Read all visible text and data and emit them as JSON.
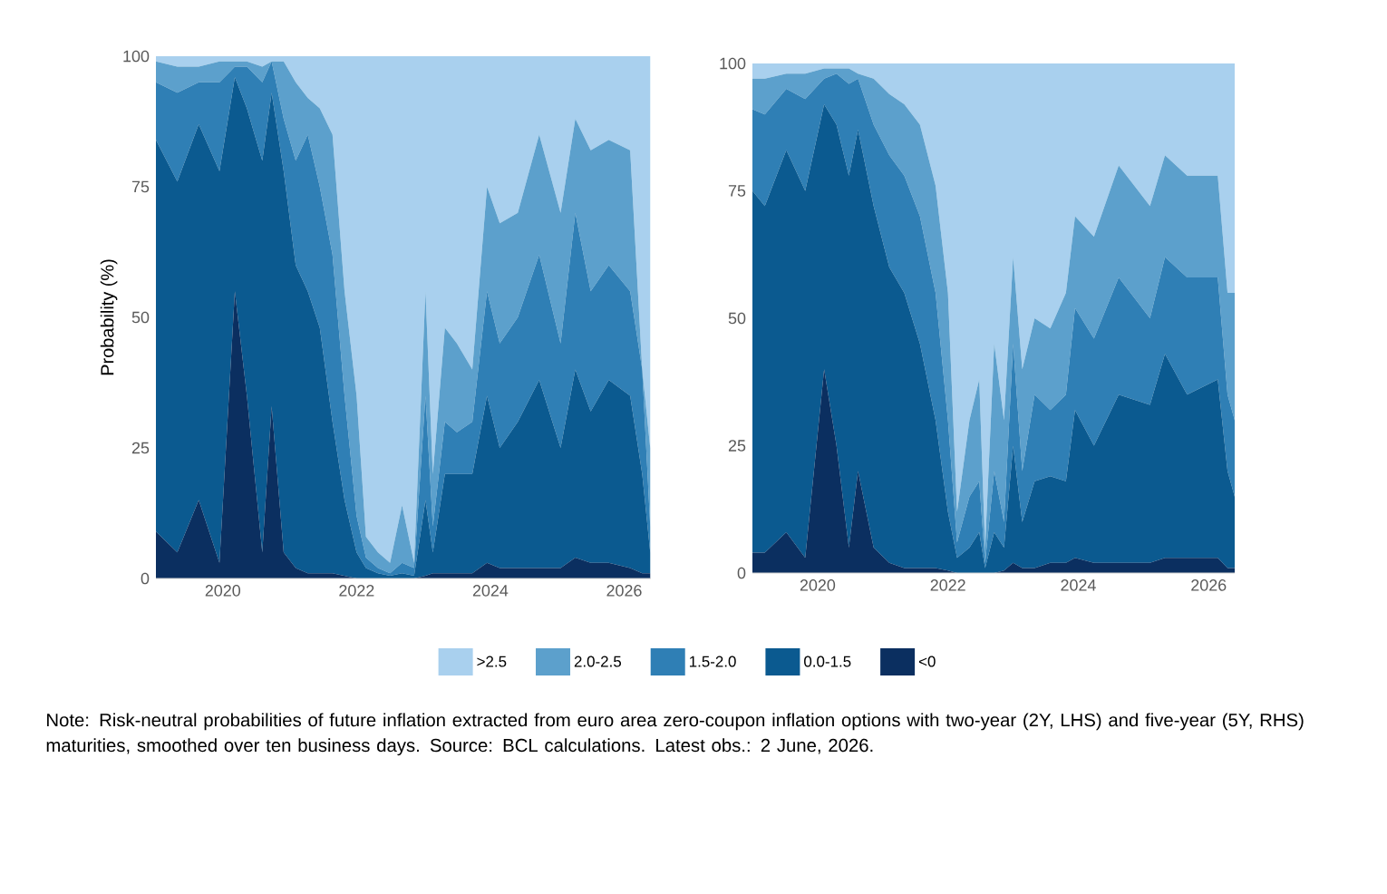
{
  "chart_data": [
    {
      "type": "area",
      "stacked": true,
      "ylabel": "Probability (%)",
      "legend": "bottom",
      "x": [
        2019,
        2019.32,
        2019.64,
        2019.95,
        2020.18,
        2020.36,
        2020.59,
        2020.73,
        2020.91,
        2021.09,
        2021.27,
        2021.45,
        2021.64,
        2021.82,
        2022,
        2022.14,
        2022.32,
        2022.5,
        2022.68,
        2022.86,
        2023.03,
        2023.14,
        2023.32,
        2023.5,
        2023.73,
        2023.95,
        2024.14,
        2024.41,
        2024.73,
        2025.05,
        2025.27,
        2025.5,
        2025.77,
        2026.09,
        2026.27,
        2026.39
      ],
      "xlim": [
        2019,
        2026.4
      ],
      "xticks": [
        2020,
        2022,
        2024,
        2026
      ],
      "ylim": [
        0,
        100
      ],
      "yticks": [
        0,
        25,
        50,
        75,
        100
      ],
      "series": [
        {
          "name": "<0",
          "color": "#0b2f60",
          "values": [
            9,
            5,
            15,
            3,
            55,
            35,
            5,
            33,
            5,
            2,
            1,
            1,
            1,
            0.5,
            0,
            0,
            0,
            0,
            0,
            0,
            0.5,
            1,
            1,
            1,
            1,
            3,
            2,
            2,
            2,
            2,
            4,
            3,
            3,
            2,
            1,
            1
          ]
        },
        {
          "name": "0.0-1.5",
          "color": "#0b5a90",
          "values": [
            75,
            71,
            72,
            75,
            41,
            55,
            75,
            60,
            73,
            58,
            54,
            47,
            29,
            14.5,
            5,
            2,
            1,
            0.5,
            1,
            0.5,
            14.5,
            4,
            19,
            19,
            19,
            32,
            23,
            28,
            36,
            23,
            36,
            29,
            35,
            33,
            19,
            4
          ]
        },
        {
          "name": "1.5-2.0",
          "color": "#2f7fb5",
          "values": [
            11,
            17,
            8,
            17,
            2,
            8,
            15,
            6,
            10,
            20,
            30,
            27,
            32,
            20,
            7,
            2,
            1,
            0.5,
            2,
            1.5,
            20,
            5,
            10,
            8,
            10,
            20,
            20,
            20,
            24,
            20,
            30,
            23,
            22,
            20,
            20,
            5
          ]
        },
        {
          "name": "2.0-2.5",
          "color": "#5ca0cc",
          "values": [
            4,
            5,
            3,
            4,
            1,
            1,
            3,
            0,
            11,
            15,
            7,
            15,
            23,
            20,
            23,
            4,
            3,
            2,
            11,
            1,
            20,
            10,
            18,
            17,
            10,
            20,
            23,
            20,
            23,
            25,
            18,
            27,
            24,
            27,
            0,
            15
          ]
        },
        {
          "name": ">2.5",
          "color": "#a9d0ee",
          "values": [
            1,
            2,
            2,
            1,
            1,
            1,
            2,
            1,
            1,
            5,
            8,
            10,
            15,
            45,
            65,
            92,
            95,
            97,
            86,
            97,
            45,
            80,
            52,
            55,
            60,
            25,
            32,
            30,
            15,
            30,
            12,
            18,
            16,
            18,
            60,
            75
          ]
        }
      ],
      "annotations": [
        "Note: Risk-neutral probabilities of future inflation extracted from euro area zero-coupon inflation options with two-year (2Y, LHS) and five-year (5Y, RHS) maturities, smoothed over ten business days. Source: BCL calculations. Latest obs.: 2 June, 2026."
      ]
    },
    {
      "type": "area",
      "stacked": true,
      "x": [
        2019,
        2019.19,
        2019.52,
        2019.81,
        2020.1,
        2020.29,
        2020.48,
        2020.62,
        2020.86,
        2021.1,
        2021.33,
        2021.57,
        2021.81,
        2022,
        2022.14,
        2022.33,
        2022.48,
        2022.57,
        2022.71,
        2022.86,
        2023,
        2023.14,
        2023.33,
        2023.57,
        2023.81,
        2023.95,
        2024.24,
        2024.62,
        2025.1,
        2025.33,
        2025.67,
        2026.14,
        2026.29,
        2026.4
      ],
      "xlim": [
        2019,
        2026.4
      ],
      "xticks": [
        2020,
        2022,
        2024,
        2026
      ],
      "ylim": [
        0,
        100
      ],
      "yticks": [
        0,
        25,
        50,
        75,
        100
      ],
      "series": [
        {
          "color": "#0b2f60",
          "values": [
            4,
            4,
            8,
            3,
            40,
            25,
            5,
            20,
            5,
            2,
            1,
            1,
            1,
            0.5,
            0,
            0,
            0,
            0,
            0,
            0.5,
            2,
            1,
            1,
            2,
            2,
            3,
            2,
            2,
            2,
            3,
            3,
            3,
            1,
            1
          ]
        },
        {
          "color": "#0b5a90",
          "values": [
            71,
            68,
            75,
            72,
            52,
            63,
            73,
            67,
            67,
            58,
            54,
            44,
            29,
            11.5,
            3,
            5,
            8,
            1,
            8,
            4.5,
            23,
            9,
            17,
            17,
            16,
            29,
            23,
            33,
            31,
            40,
            32,
            35,
            19,
            14
          ]
        },
        {
          "color": "#2f7fb5",
          "values": [
            16,
            18,
            12,
            18,
            5,
            10,
            18,
            10,
            16,
            22,
            23,
            25,
            25,
            18,
            3,
            10,
            10,
            1,
            12,
            5,
            20,
            10,
            17,
            13,
            17,
            20,
            21,
            23,
            17,
            19,
            23,
            20,
            15,
            15
          ]
        },
        {
          "color": "#5ca0cc",
          "values": [
            6,
            7,
            3,
            5,
            2,
            1,
            3,
            1,
            9,
            12,
            14,
            18,
            21,
            25,
            6,
            15,
            20,
            3,
            25,
            20,
            17,
            20,
            15,
            16,
            20,
            18,
            20,
            22,
            22,
            20,
            20,
            20,
            20,
            25
          ]
        },
        {
          "color": "#a9d0ee",
          "values": [
            3,
            3,
            2,
            2,
            1,
            1,
            1,
            2,
            3,
            6,
            8,
            12,
            24,
            45,
            88,
            70,
            62,
            95,
            55,
            70,
            38,
            60,
            50,
            52,
            45,
            30,
            34,
            20,
            28,
            18,
            22,
            22,
            45,
            45
          ]
        }
      ]
    }
  ]
}
